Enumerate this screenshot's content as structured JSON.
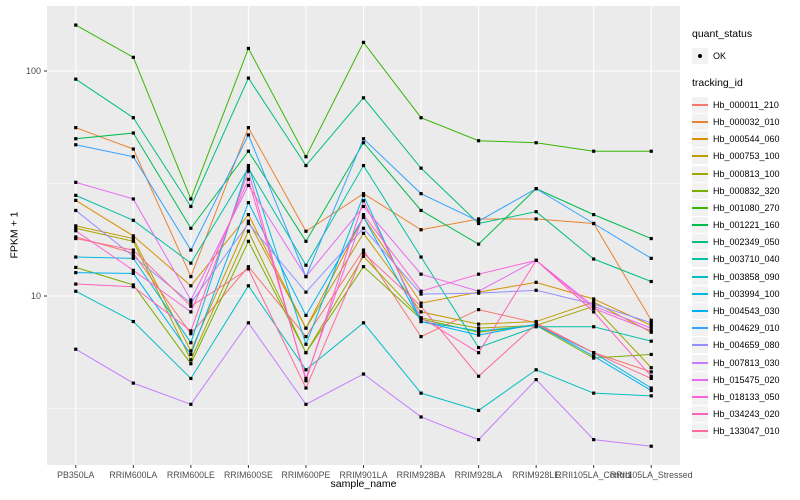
{
  "panel": {
    "bg": "#EBEBEB",
    "grid_color": "#FFFFFF",
    "tick_color": "#333333",
    "tick_label_color": "#4D4D4D"
  },
  "legend": {
    "key_bg": "#F2F2F2",
    "quant_status": {
      "title": "quant_status",
      "items": [
        {
          "label": "OK",
          "marker": "black-point"
        }
      ]
    },
    "tracking_id": {
      "title": "tracking_id"
    }
  },
  "chart_data": {
    "type": "line",
    "title": "",
    "xlabel": "sample_name",
    "ylabel": "FPKM + 1",
    "y_scale": "log10",
    "ylim": [
      1.8,
      195
    ],
    "y_ticks": [
      100,
      10
    ],
    "y_minor_ticks": [
      31.62,
      3.162
    ],
    "grid": true,
    "legend_position": "right",
    "marker": "black point (quant_status = OK) at every vertex",
    "categories": [
      "PB350LA",
      "RRIM600LA",
      "RRIM600LE",
      "RRIM600SE",
      "RRIM600PE",
      "RRIM901LA",
      "RRIM928BA",
      "RRIM928LA",
      "RRIM928LE",
      "RRII105LA_Control",
      "RRII105LA_Stressed"
    ],
    "series": [
      {
        "name": "Hb_000011_210",
        "color": "#F8766D",
        "values": [
          18.3,
          15.5,
          6.8,
          13.5,
          6.6,
          16,
          6.6,
          8.7,
          7.6,
          5.6,
          4.6
        ]
      },
      {
        "name": "Hb_000032_010",
        "color": "#EA8331",
        "values": [
          56,
          45,
          12.2,
          56,
          19.4,
          28.5,
          19.7,
          22,
          22,
          21,
          7.8
        ]
      },
      {
        "name": "Hb_000544_060",
        "color": "#D89000",
        "values": [
          26.6,
          18.5,
          11.1,
          23,
          7.2,
          22.4,
          9.3,
          10.4,
          11.5,
          9.7,
          7.4
        ]
      },
      {
        "name": "Hb_000753_100",
        "color": "#C09B00",
        "values": [
          20.5,
          18,
          5.7,
          21.5,
          7.2,
          19,
          8.5,
          7.5,
          7.7,
          9.4,
          6.9
        ]
      },
      {
        "name": "Hb_000813_100",
        "color": "#A3A500",
        "values": [
          20,
          17.5,
          5.2,
          19.4,
          5.6,
          15,
          8,
          7.2,
          7.4,
          9,
          4.8
        ]
      },
      {
        "name": "Hb_000832_320",
        "color": "#7CAE00",
        "values": [
          13.4,
          11.2,
          5,
          17.5,
          5.6,
          13.5,
          7.9,
          6.9,
          7.4,
          5.3,
          5.5
        ]
      },
      {
        "name": "Hb_001080_270",
        "color": "#39B600",
        "values": [
          160,
          115,
          27,
          126,
          41.6,
          134,
          62,
          49,
          48,
          44,
          44
        ]
      },
      {
        "name": "Hb_001221_160",
        "color": "#00BB4E",
        "values": [
          50,
          53,
          20,
          44,
          17.5,
          48,
          24,
          17,
          30,
          23,
          18
        ]
      },
      {
        "name": "Hb_002349_050",
        "color": "#00BF7D",
        "values": [
          92,
          62,
          25,
          93,
          38,
          76,
          37,
          21,
          23.7,
          14.6,
          11.6
        ]
      },
      {
        "name": "Hb_003710_040",
        "color": "#00C1A3",
        "values": [
          28,
          21.7,
          14,
          37,
          13.7,
          38,
          14.9,
          5.9,
          7.3,
          7.3,
          6.3
        ]
      },
      {
        "name": "Hb_003858_090",
        "color": "#00BFC4",
        "values": [
          10.5,
          7.7,
          4.3,
          11.1,
          4.7,
          7.6,
          3.7,
          3.1,
          4.7,
          3.7,
          3.6
        ]
      },
      {
        "name": "Hb_003994_100",
        "color": "#00BAE0",
        "values": [
          14.9,
          14.7,
          6.2,
          38,
          6.1,
          28,
          7.7,
          7,
          7.4,
          5.6,
          3.9
        ]
      },
      {
        "name": "Hb_004543_030",
        "color": "#00B0F6",
        "values": [
          12.7,
          12.6,
          5.5,
          26,
          8.2,
          22.4,
          7.7,
          6.7,
          7.5,
          5.4,
          3.8
        ]
      },
      {
        "name": "Hb_004629_010",
        "color": "#35A2FF",
        "values": [
          47,
          41.6,
          16,
          52,
          12.2,
          50,
          28.5,
          21.5,
          30,
          21,
          14.7
        ]
      },
      {
        "name": "Hb_004659_080",
        "color": "#9590FF",
        "values": [
          24,
          15,
          9.3,
          21,
          10.4,
          20,
          10.2,
          10.3,
          10.6,
          9.2,
          7.6
        ]
      },
      {
        "name": "Hb_007813_030",
        "color": "#C77CFF",
        "values": [
          5.8,
          4.1,
          3.3,
          7.6,
          3.3,
          4.5,
          2.9,
          2.3,
          4.25,
          2.3,
          2.15
        ]
      },
      {
        "name": "Hb_015475_020",
        "color": "#E76BF3",
        "values": [
          32,
          27,
          9.6,
          31,
          12.2,
          25,
          12.5,
          10.5,
          14.4,
          9,
          7.2
        ]
      },
      {
        "name": "Hb_018133_050",
        "color": "#FA62DB",
        "values": [
          19.5,
          13,
          8.5,
          33,
          4.3,
          23,
          10.5,
          12.5,
          14.4,
          8.8,
          7
        ]
      },
      {
        "name": "Hb_034243_020",
        "color": "#FF62BC",
        "values": [
          11.3,
          11,
          7,
          35.9,
          4.2,
          26.5,
          8,
          5.6,
          14.4,
          8.5,
          4.4
        ]
      },
      {
        "name": "Hb_133047_010",
        "color": "#FF6A98",
        "values": [
          18,
          16,
          9,
          13.2,
          3.9,
          15.5,
          9,
          4.4,
          7.5,
          5.6,
          4.3
        ]
      }
    ]
  }
}
